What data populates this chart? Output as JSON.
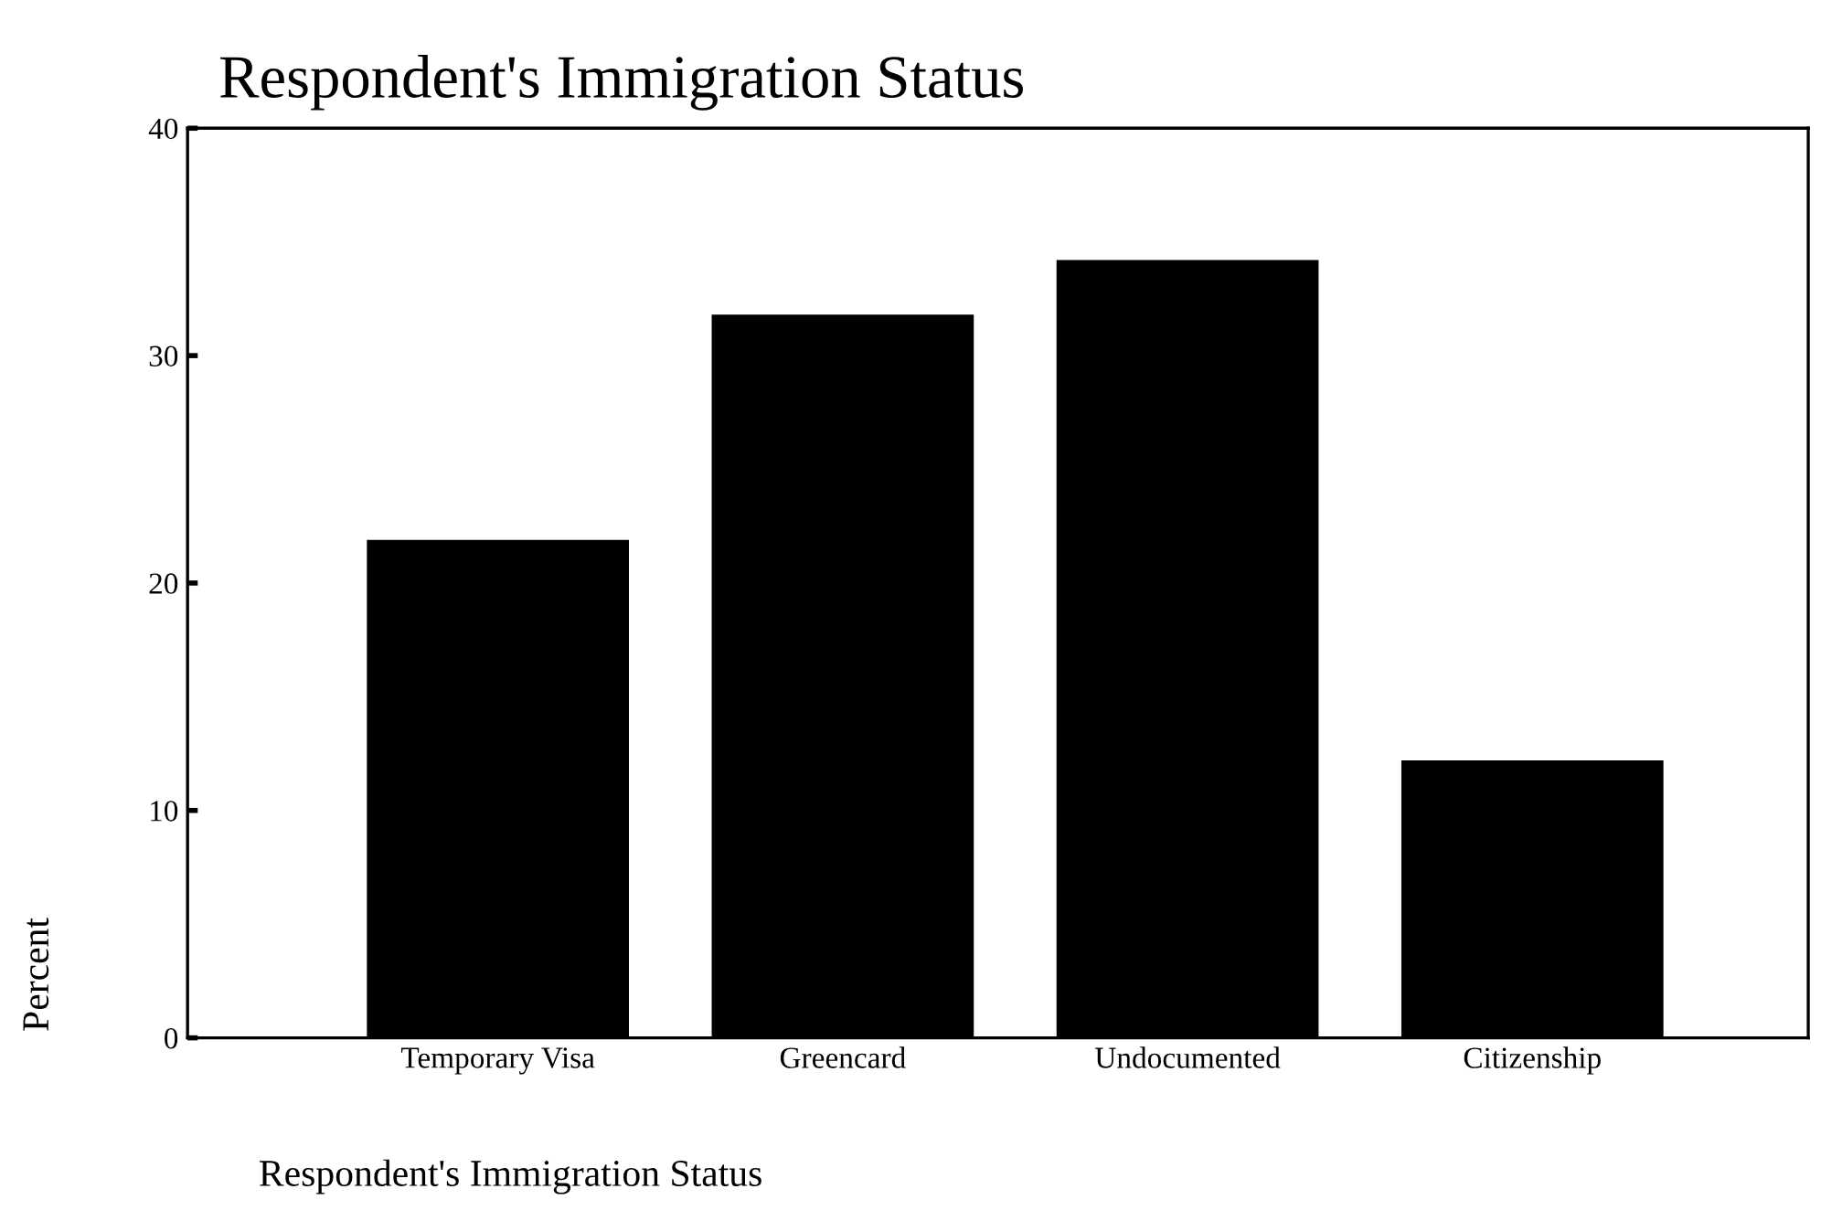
{
  "chart_data": {
    "type": "bar",
    "title": "Respondent's Immigration Status",
    "xlabel": "Respondent's Immigration Status",
    "ylabel": "Percent",
    "categories": [
      "Temporary Visa",
      "Greencard",
      "Undocumented",
      "Citizenship"
    ],
    "values": [
      21.9,
      31.8,
      34.2,
      12.2
    ],
    "color": "#000000",
    "ylim": [
      0,
      40
    ],
    "yticks": [
      0,
      10,
      20,
      30,
      40
    ],
    "grid": false,
    "legend": false
  }
}
